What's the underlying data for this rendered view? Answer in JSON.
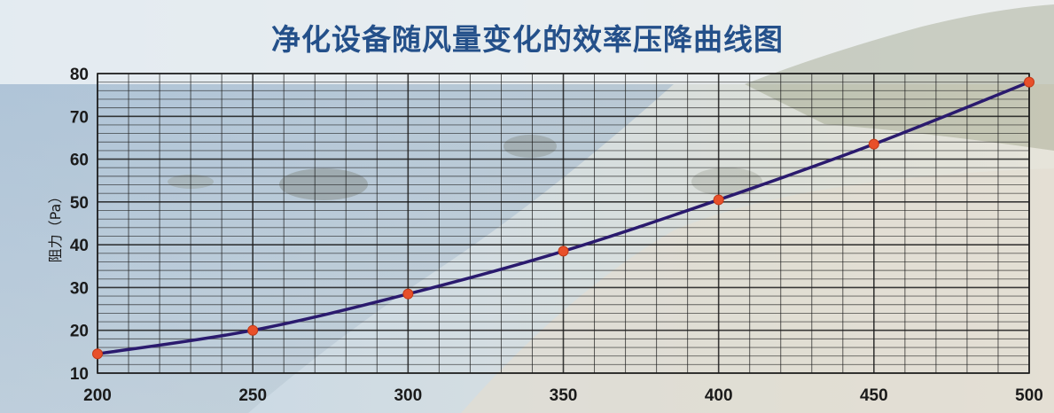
{
  "chart_data": {
    "type": "line",
    "title": "净化设备随风量变化的效率压降曲线图",
    "xlabel": "",
    "ylabel": "阻力（Pa）",
    "x": [
      200,
      250,
      300,
      350,
      400,
      450,
      500
    ],
    "series": [
      {
        "values": [
          14.5,
          20,
          28.5,
          38.5,
          50.5,
          63.5,
          78
        ]
      }
    ],
    "xticks": [
      "200",
      "250",
      "300",
      "350",
      "400",
      "450",
      "500"
    ],
    "yticks": [
      "10",
      "20",
      "30",
      "40",
      "50",
      "60",
      "70",
      "80"
    ],
    "xlim": [
      200,
      500
    ],
    "ylim": [
      10,
      80
    ],
    "grid": true,
    "legend": "none",
    "colors": {
      "line": "#2a1a6e",
      "marker": "#e8502a",
      "grid": "#1c1c1c",
      "title": "#24508a"
    }
  }
}
